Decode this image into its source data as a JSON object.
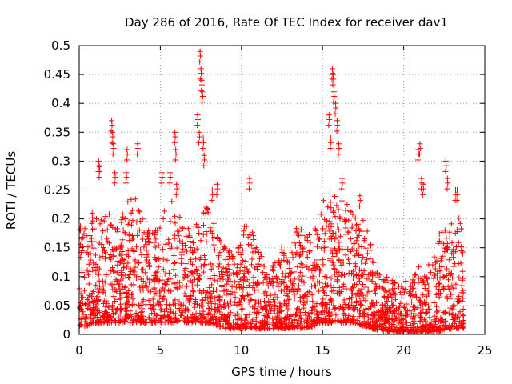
{
  "chart_data": {
    "type": "scatter",
    "title": "Day 286 of 2016, Rate Of TEC Index for receiver dav1",
    "xlabel": "GPS time / hours",
    "ylabel": "ROTI / TECUs",
    "xlim": [
      0,
      25
    ],
    "ylim": [
      0,
      0.5
    ],
    "xticks": [
      0,
      5,
      10,
      15,
      20,
      25
    ],
    "xtick_labels": [
      "0",
      "5",
      "10",
      "15",
      "20",
      "25"
    ],
    "yticks": [
      0,
      0.05,
      0.1,
      0.15,
      0.2,
      0.25,
      0.3,
      0.35,
      0.4,
      0.45,
      0.5
    ],
    "ytick_labels": [
      "0",
      "0.05",
      "0.1",
      "0.15",
      "0.2",
      "0.25",
      "0.3",
      "0.35",
      "0.4",
      "0.45",
      "0.5"
    ],
    "grid": true,
    "marker": "+",
    "color": "#ff0000",
    "series": [
      {
        "name": "dav1",
        "envelope_description": "dense cloud of ROTI samples from 0 to 23.7 h; values estimated from the figure",
        "baseline_points": [
          [
            0.0,
            0.03
          ],
          [
            1.0,
            0.04
          ],
          [
            2.0,
            0.04
          ],
          [
            3.0,
            0.04
          ],
          [
            4.0,
            0.04
          ],
          [
            5.0,
            0.04
          ],
          [
            6.0,
            0.04
          ],
          [
            7.0,
            0.04
          ],
          [
            8.0,
            0.04
          ],
          [
            9.0,
            0.03
          ],
          [
            10.0,
            0.03
          ],
          [
            11.0,
            0.03
          ],
          [
            12.0,
            0.03
          ],
          [
            13.0,
            0.03
          ],
          [
            14.0,
            0.03
          ],
          [
            15.0,
            0.04
          ],
          [
            16.0,
            0.04
          ],
          [
            17.0,
            0.04
          ],
          [
            18.0,
            0.03
          ],
          [
            19.0,
            0.025
          ],
          [
            20.0,
            0.02
          ],
          [
            21.0,
            0.02
          ],
          [
            22.0,
            0.025
          ],
          [
            23.0,
            0.03
          ],
          [
            23.7,
            0.03
          ]
        ],
        "upper_envelope": [
          [
            0.0,
            0.2
          ],
          [
            0.5,
            0.18
          ],
          [
            1.0,
            0.21
          ],
          [
            1.5,
            0.2
          ],
          [
            2.0,
            0.22
          ],
          [
            2.5,
            0.2
          ],
          [
            3.0,
            0.23
          ],
          [
            3.5,
            0.24
          ],
          [
            4.0,
            0.2
          ],
          [
            4.5,
            0.19
          ],
          [
            5.0,
            0.2
          ],
          [
            5.5,
            0.24
          ],
          [
            6.0,
            0.23
          ],
          [
            6.5,
            0.18
          ],
          [
            7.0,
            0.2
          ],
          [
            7.5,
            0.22
          ],
          [
            8.0,
            0.24
          ],
          [
            8.5,
            0.17
          ],
          [
            9.0,
            0.15
          ],
          [
            9.5,
            0.14
          ],
          [
            10.0,
            0.17
          ],
          [
            10.5,
            0.22
          ],
          [
            11.0,
            0.15
          ],
          [
            11.5,
            0.13
          ],
          [
            12.0,
            0.12
          ],
          [
            12.5,
            0.16
          ],
          [
            13.0,
            0.13
          ],
          [
            13.5,
            0.21
          ],
          [
            14.0,
            0.17
          ],
          [
            14.5,
            0.18
          ],
          [
            15.0,
            0.23
          ],
          [
            15.5,
            0.25
          ],
          [
            16.0,
            0.24
          ],
          [
            16.5,
            0.23
          ],
          [
            17.0,
            0.21
          ],
          [
            17.5,
            0.2
          ],
          [
            18.0,
            0.16
          ],
          [
            18.5,
            0.11
          ],
          [
            19.0,
            0.1
          ],
          [
            19.5,
            0.09
          ],
          [
            20.0,
            0.09
          ],
          [
            20.5,
            0.1
          ],
          [
            21.0,
            0.12
          ],
          [
            21.5,
            0.13
          ],
          [
            22.0,
            0.15
          ],
          [
            22.5,
            0.21
          ],
          [
            23.0,
            0.2
          ],
          [
            23.5,
            0.24
          ],
          [
            23.7,
            0.15
          ]
        ],
        "spikes": [
          [
            0.8,
            0.21
          ],
          [
            1.2,
            0.3
          ],
          [
            1.25,
            0.29
          ],
          [
            2.0,
            0.37
          ],
          [
            2.05,
            0.35
          ],
          [
            2.1,
            0.33
          ],
          [
            2.2,
            0.28
          ],
          [
            2.9,
            0.28
          ],
          [
            2.95,
            0.32
          ],
          [
            3.6,
            0.33
          ],
          [
            5.1,
            0.28
          ],
          [
            5.6,
            0.28
          ],
          [
            5.9,
            0.35
          ],
          [
            5.95,
            0.32
          ],
          [
            6.0,
            0.26
          ],
          [
            7.3,
            0.38
          ],
          [
            7.4,
            0.35
          ],
          [
            7.45,
            0.49
          ],
          [
            7.5,
            0.46
          ],
          [
            7.55,
            0.44
          ],
          [
            7.6,
            0.42
          ],
          [
            7.65,
            0.34
          ],
          [
            7.7,
            0.31
          ],
          [
            8.2,
            0.25
          ],
          [
            8.5,
            0.26
          ],
          [
            10.5,
            0.27
          ],
          [
            15.4,
            0.38
          ],
          [
            15.5,
            0.34
          ],
          [
            15.6,
            0.46
          ],
          [
            15.65,
            0.45
          ],
          [
            15.7,
            0.42
          ],
          [
            15.8,
            0.4
          ],
          [
            15.9,
            0.37
          ],
          [
            16.0,
            0.33
          ],
          [
            16.2,
            0.27
          ],
          [
            17.3,
            0.24
          ],
          [
            20.9,
            0.32
          ],
          [
            21.0,
            0.33
          ],
          [
            21.1,
            0.27
          ],
          [
            21.2,
            0.26
          ],
          [
            22.6,
            0.3
          ],
          [
            22.7,
            0.27
          ],
          [
            23.2,
            0.25
          ],
          [
            23.3,
            0.25
          ]
        ]
      }
    ]
  }
}
